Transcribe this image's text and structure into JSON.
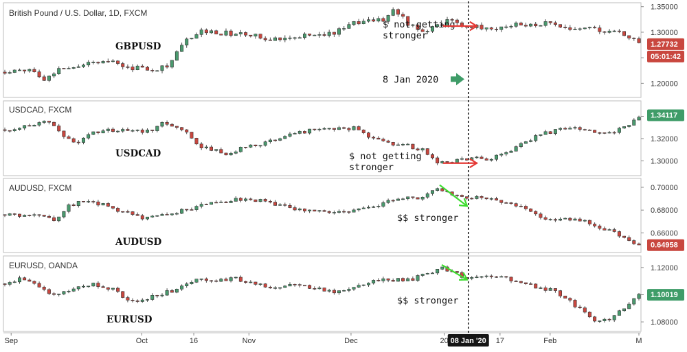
{
  "chart_data": {
    "type": "candlestick",
    "colors": {
      "up": "#4a9a6e",
      "down": "#c9473f",
      "marker_red": "#e53935",
      "marker_green": "#3ddc2f",
      "badge_green": "#3f9c68",
      "current_x_bg": "#151515"
    },
    "x_axis": {
      "labels": [
        {
          "text": "Sep",
          "pos": 0.01
        },
        {
          "text": "Oct",
          "pos": 0.216
        },
        {
          "text": "16",
          "pos": 0.298
        },
        {
          "text": "Nov",
          "pos": 0.385
        },
        {
          "text": "Dec",
          "pos": 0.546
        },
        {
          "text": "20",
          "pos": 0.693
        },
        {
          "text": "17",
          "pos": 0.781
        },
        {
          "text": "Feb",
          "pos": 0.86
        },
        {
          "text": "M",
          "pos": 1.0
        }
      ],
      "current_label": "08 Jan '20",
      "current_pos": 0.731
    },
    "panes": [
      {
        "title": "British Pound / U.S. Dollar, 1D, FXCM",
        "symbol": "GBPUSD",
        "ylim": [
          1.175,
          1.355
        ],
        "ticks": [
          "1.35000",
          "1.30000",
          "1.25000",
          "1.20000"
        ],
        "tick_values": [
          1.35,
          1.3,
          1.25,
          1.2
        ],
        "last_price": "1.27732",
        "last_value": 1.2773,
        "countdown": "05:01:42",
        "tag_color": "#c9473f",
        "anchors": [
          [
            0,
            1.222
          ],
          [
            0.04,
            1.228
          ],
          [
            0.065,
            1.208
          ],
          [
            0.09,
            1.232
          ],
          [
            0.13,
            1.238
          ],
          [
            0.16,
            1.248
          ],
          [
            0.19,
            1.232
          ],
          [
            0.24,
            1.228
          ],
          [
            0.26,
            1.238
          ],
          [
            0.285,
            1.282
          ],
          [
            0.31,
            1.302
          ],
          [
            0.37,
            1.296
          ],
          [
            0.42,
            1.288
          ],
          [
            0.47,
            1.294
          ],
          [
            0.52,
            1.298
          ],
          [
            0.56,
            1.322
          ],
          [
            0.6,
            1.326
          ],
          [
            0.615,
            1.345
          ],
          [
            0.635,
            1.318
          ],
          [
            0.66,
            1.304
          ],
          [
            0.68,
            1.312
          ],
          [
            0.7,
            1.322
          ],
          [
            0.73,
            1.312
          ],
          [
            0.76,
            1.306
          ],
          [
            0.8,
            1.314
          ],
          [
            0.83,
            1.312
          ],
          [
            0.86,
            1.318
          ],
          [
            0.89,
            1.302
          ],
          [
            0.92,
            1.308
          ],
          [
            0.95,
            1.302
          ],
          [
            0.97,
            1.301
          ],
          [
            1.0,
            1.277
          ]
        ],
        "annotations": [
          {
            "lines": [
              "$ not getting",
              "stronger"
            ],
            "y": 1.301
          },
          {
            "lines": [
              "8 Jan 2020"
            ],
            "y": 1.208
          }
        ]
      },
      {
        "title": "USDCAD, FXCM",
        "symbol": "USDCAD",
        "ylim": [
          1.288,
          1.352
        ],
        "ticks": [
          "1.34000",
          "1.32000",
          "1.30000"
        ],
        "tick_values": [
          1.34,
          1.32,
          1.3
        ],
        "last_price": "1.34117",
        "last_value": 1.3412,
        "tag_color": "#3f9c68",
        "anchors": [
          [
            0,
            1.328
          ],
          [
            0.05,
            1.332
          ],
          [
            0.07,
            1.336
          ],
          [
            0.09,
            1.322
          ],
          [
            0.11,
            1.316
          ],
          [
            0.14,
            1.326
          ],
          [
            0.17,
            1.328
          ],
          [
            0.2,
            1.326
          ],
          [
            0.23,
            1.328
          ],
          [
            0.25,
            1.334
          ],
          [
            0.27,
            1.332
          ],
          [
            0.29,
            1.324
          ],
          [
            0.31,
            1.312
          ],
          [
            0.34,
            1.308
          ],
          [
            0.36,
            1.306
          ],
          [
            0.38,
            1.314
          ],
          [
            0.41,
            1.316
          ],
          [
            0.44,
            1.322
          ],
          [
            0.47,
            1.326
          ],
          [
            0.49,
            1.33
          ],
          [
            0.52,
            1.328
          ],
          [
            0.55,
            1.33
          ],
          [
            0.57,
            1.322
          ],
          [
            0.6,
            1.316
          ],
          [
            0.63,
            1.314
          ],
          [
            0.66,
            1.31
          ],
          [
            0.68,
            1.3
          ],
          [
            0.7,
            1.298
          ],
          [
            0.73,
            1.302
          ],
          [
            0.76,
            1.302
          ],
          [
            0.79,
            1.306
          ],
          [
            0.81,
            1.314
          ],
          [
            0.84,
            1.322
          ],
          [
            0.87,
            1.328
          ],
          [
            0.9,
            1.33
          ],
          [
            0.92,
            1.326
          ],
          [
            0.95,
            1.324
          ],
          [
            0.98,
            1.33
          ],
          [
            1.0,
            1.341
          ]
        ],
        "annotations": [
          {
            "lines": [
              "$ not getting",
              "stronger"
            ],
            "y": 1.298
          }
        ]
      },
      {
        "title": "AUDUSD, FXCM",
        "symbol": "AUDUSD",
        "ylim": [
          0.644,
          0.706
        ],
        "ticks": [
          "0.70000",
          "0.68000",
          "0.66000"
        ],
        "tick_values": [
          0.7,
          0.68,
          0.66
        ],
        "last_price": "0.64958",
        "last_value": 0.6496,
        "tag_color": "#c9473f",
        "anchors": [
          [
            0,
            0.676
          ],
          [
            0.05,
            0.675
          ],
          [
            0.08,
            0.672
          ],
          [
            0.1,
            0.684
          ],
          [
            0.13,
            0.688
          ],
          [
            0.16,
            0.684
          ],
          [
            0.19,
            0.678
          ],
          [
            0.22,
            0.672
          ],
          [
            0.26,
            0.676
          ],
          [
            0.29,
            0.681
          ],
          [
            0.33,
            0.686
          ],
          [
            0.37,
            0.69
          ],
          [
            0.41,
            0.688
          ],
          [
            0.44,
            0.684
          ],
          [
            0.48,
            0.679
          ],
          [
            0.52,
            0.677
          ],
          [
            0.55,
            0.68
          ],
          [
            0.59,
            0.685
          ],
          [
            0.62,
            0.689
          ],
          [
            0.66,
            0.692
          ],
          [
            0.68,
            0.7
          ],
          [
            0.7,
            0.696
          ],
          [
            0.72,
            0.692
          ],
          [
            0.76,
            0.69
          ],
          [
            0.8,
            0.686
          ],
          [
            0.84,
            0.676
          ],
          [
            0.87,
            0.67
          ],
          [
            0.9,
            0.673
          ],
          [
            0.93,
            0.667
          ],
          [
            0.96,
            0.66
          ],
          [
            1.0,
            0.65
          ]
        ],
        "annotations": [
          {
            "lines": [
              "$$ stronger"
            ],
            "y": 0.6735
          }
        ]
      },
      {
        "title": "EURUSD, OANDA",
        "symbol": "EURUSD",
        "ylim": [
          1.074,
          1.127
        ],
        "ticks": [
          "1.12000",
          "1.10000",
          "1.08000"
        ],
        "tick_values": [
          1.12,
          1.1,
          1.08
        ],
        "last_price": "1.10019",
        "last_value": 1.1002,
        "tag_color": "#3f9c68",
        "anchors": [
          [
            0,
            1.108
          ],
          [
            0.03,
            1.112
          ],
          [
            0.05,
            1.106
          ],
          [
            0.08,
            1.1
          ],
          [
            0.11,
            1.104
          ],
          [
            0.14,
            1.108
          ],
          [
            0.17,
            1.104
          ],
          [
            0.19,
            1.098
          ],
          [
            0.21,
            1.094
          ],
          [
            0.24,
            1.1
          ],
          [
            0.27,
            1.104
          ],
          [
            0.3,
            1.112
          ],
          [
            0.33,
            1.11
          ],
          [
            0.36,
            1.112
          ],
          [
            0.4,
            1.108
          ],
          [
            0.43,
            1.104
          ],
          [
            0.46,
            1.108
          ],
          [
            0.5,
            1.104
          ],
          [
            0.53,
            1.102
          ],
          [
            0.56,
            1.108
          ],
          [
            0.6,
            1.112
          ],
          [
            0.63,
            1.11
          ],
          [
            0.66,
            1.114
          ],
          [
            0.69,
            1.12
          ],
          [
            0.72,
            1.114
          ],
          [
            0.74,
            1.112
          ],
          [
            0.78,
            1.114
          ],
          [
            0.81,
            1.108
          ],
          [
            0.84,
            1.106
          ],
          [
            0.87,
            1.102
          ],
          [
            0.9,
            1.092
          ],
          [
            0.92,
            1.084
          ],
          [
            0.94,
            1.08
          ],
          [
            0.96,
            1.084
          ],
          [
            0.98,
            1.092
          ],
          [
            1.0,
            1.1
          ]
        ],
        "annotations": [
          {
            "lines": [
              "$$ stronger"
            ],
            "y": 1.096
          }
        ]
      }
    ]
  }
}
